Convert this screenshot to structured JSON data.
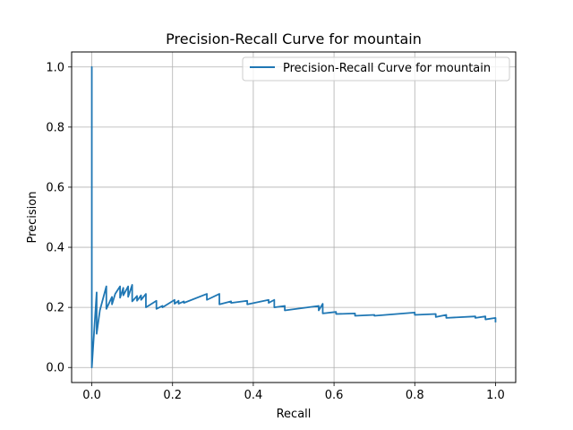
{
  "chart_data": {
    "type": "line",
    "title": "Precision-Recall Curve for mountain",
    "xlabel": "Recall",
    "ylabel": "Precision",
    "xlim": [
      -0.05,
      1.05
    ],
    "ylim": [
      -0.05,
      1.05
    ],
    "xticks": [
      0.0,
      0.2,
      0.4,
      0.6,
      0.8,
      1.0
    ],
    "yticks": [
      0.0,
      0.2,
      0.4,
      0.6,
      0.8,
      1.0
    ],
    "xtick_labels": [
      "0.0",
      "0.2",
      "0.4",
      "0.6",
      "0.8",
      "1.0"
    ],
    "ytick_labels": [
      "0.0",
      "0.2",
      "0.4",
      "0.6",
      "0.8",
      "1.0"
    ],
    "grid": true,
    "legend_position": "top-right",
    "series": [
      {
        "name": "Precision-Recall Curve for mountain",
        "color": "#1f77b4",
        "x": [
          0.0,
          0.0,
          0.0,
          0.012,
          0.012,
          0.02,
          0.036,
          0.036,
          0.05,
          0.05,
          0.058,
          0.07,
          0.07,
          0.078,
          0.078,
          0.09,
          0.09,
          0.1,
          0.1,
          0.112,
          0.112,
          0.122,
          0.122,
          0.134,
          0.134,
          0.16,
          0.16,
          0.175,
          0.175,
          0.205,
          0.205,
          0.215,
          0.215,
          0.228,
          0.228,
          0.285,
          0.285,
          0.316,
          0.316,
          0.345,
          0.345,
          0.385,
          0.385,
          0.438,
          0.438,
          0.452,
          0.452,
          0.478,
          0.478,
          0.562,
          0.562,
          0.572,
          0.572,
          0.605,
          0.605,
          0.652,
          0.652,
          0.7,
          0.7,
          0.8,
          0.8,
          0.852,
          0.852,
          0.878,
          0.878,
          0.95,
          0.95,
          0.975,
          0.975,
          1.0,
          1.0
        ],
        "y": [
          0.0,
          1.0,
          0.0,
          0.25,
          0.112,
          0.19,
          0.27,
          0.195,
          0.235,
          0.21,
          0.245,
          0.27,
          0.232,
          0.265,
          0.24,
          0.27,
          0.235,
          0.275,
          0.22,
          0.238,
          0.222,
          0.24,
          0.225,
          0.245,
          0.2,
          0.222,
          0.195,
          0.205,
          0.2,
          0.225,
          0.212,
          0.222,
          0.212,
          0.22,
          0.215,
          0.245,
          0.225,
          0.245,
          0.21,
          0.22,
          0.215,
          0.222,
          0.21,
          0.225,
          0.215,
          0.225,
          0.2,
          0.205,
          0.19,
          0.205,
          0.19,
          0.212,
          0.18,
          0.185,
          0.178,
          0.18,
          0.172,
          0.175,
          0.172,
          0.183,
          0.175,
          0.178,
          0.168,
          0.175,
          0.165,
          0.17,
          0.165,
          0.17,
          0.16,
          0.165,
          0.15
        ]
      }
    ]
  }
}
